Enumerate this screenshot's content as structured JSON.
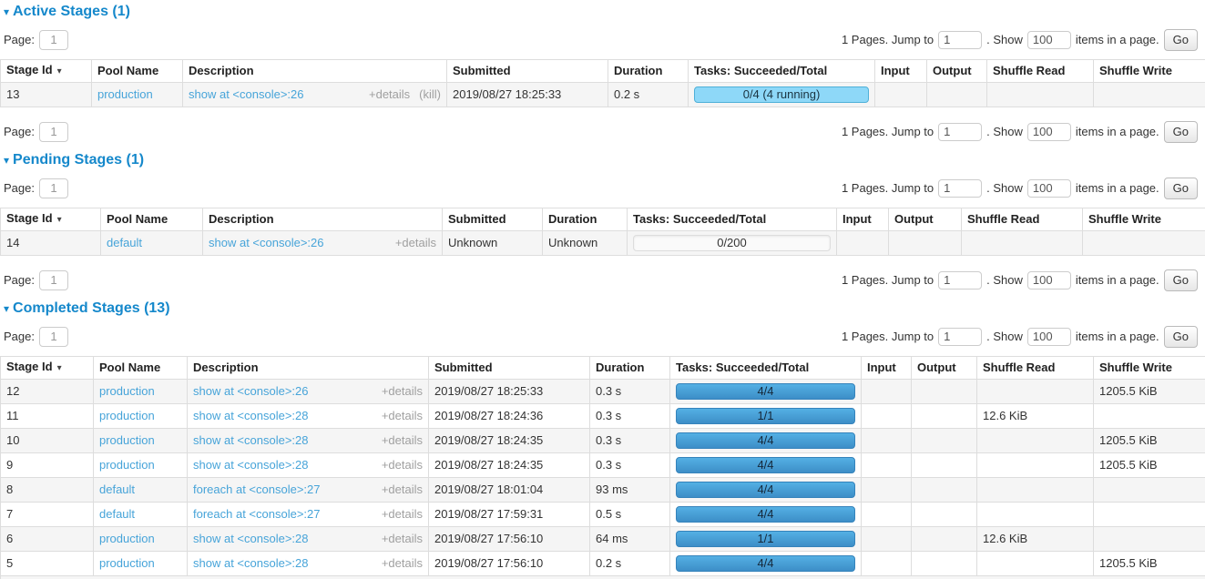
{
  "icons": {
    "collapse": "▾",
    "sort_desc": "▾"
  },
  "colors": {
    "heading_blue": "#1588cb",
    "link_blue": "#47a4d9",
    "bar_completed_top": "#54b0e4",
    "bar_completed_bottom": "#3d8ec7",
    "bar_running": "#8ed8f8",
    "row_stripe": "#f5f5f5",
    "table_border": "#dddddd"
  },
  "pagination": {
    "page_label": "Page:",
    "page_value": "1",
    "pages_text": "1 Pages. Jump to",
    "show_sep": ". Show",
    "jump_value": "1",
    "show_value": "100",
    "items_text": "items in a page.",
    "go_label": "Go"
  },
  "columns": [
    "Stage Id",
    "Pool Name",
    "Description",
    "Submitted",
    "Duration",
    "Tasks: Succeeded/Total",
    "Input",
    "Output",
    "Shuffle Read",
    "Shuffle Write"
  ],
  "sections": {
    "active": {
      "title": "Active Stages (1)",
      "rows": [
        {
          "stage_id": "13",
          "pool": "production",
          "description": "show at <console>:26",
          "details": "+details",
          "kill": "(kill)",
          "submitted": "2019/08/27 18:25:33",
          "duration": "0.2 s",
          "tasks": {
            "label": "0/4 (4 running)",
            "type": "running"
          },
          "input": "",
          "output": "",
          "shuffle_read": "",
          "shuffle_write": ""
        }
      ]
    },
    "pending": {
      "title": "Pending Stages (1)",
      "rows": [
        {
          "stage_id": "14",
          "pool": "default",
          "description": "show at <console>:26",
          "details": "+details",
          "submitted": "Unknown",
          "duration": "Unknown",
          "tasks": {
            "label": "0/200",
            "type": "empty"
          },
          "input": "",
          "output": "",
          "shuffle_read": "",
          "shuffle_write": ""
        }
      ]
    },
    "completed": {
      "title": "Completed Stages (13)",
      "rows": [
        {
          "stage_id": "12",
          "pool": "production",
          "description": "show at <console>:26",
          "details": "+details",
          "submitted": "2019/08/27 18:25:33",
          "duration": "0.3 s",
          "tasks": {
            "label": "4/4",
            "type": "completed"
          },
          "input": "",
          "output": "",
          "shuffle_read": "",
          "shuffle_write": "1205.5 KiB"
        },
        {
          "stage_id": "11",
          "pool": "production",
          "description": "show at <console>:28",
          "details": "+details",
          "submitted": "2019/08/27 18:24:36",
          "duration": "0.3 s",
          "tasks": {
            "label": "1/1",
            "type": "completed"
          },
          "input": "",
          "output": "",
          "shuffle_read": "12.6 KiB",
          "shuffle_write": ""
        },
        {
          "stage_id": "10",
          "pool": "production",
          "description": "show at <console>:28",
          "details": "+details",
          "submitted": "2019/08/27 18:24:35",
          "duration": "0.3 s",
          "tasks": {
            "label": "4/4",
            "type": "completed"
          },
          "input": "",
          "output": "",
          "shuffle_read": "",
          "shuffle_write": "1205.5 KiB"
        },
        {
          "stage_id": "9",
          "pool": "production",
          "description": "show at <console>:28",
          "details": "+details",
          "submitted": "2019/08/27 18:24:35",
          "duration": "0.3 s",
          "tasks": {
            "label": "4/4",
            "type": "completed"
          },
          "input": "",
          "output": "",
          "shuffle_read": "",
          "shuffle_write": "1205.5 KiB"
        },
        {
          "stage_id": "8",
          "pool": "default",
          "description": "foreach at <console>:27",
          "details": "+details",
          "submitted": "2019/08/27 18:01:04",
          "duration": "93 ms",
          "tasks": {
            "label": "4/4",
            "type": "completed"
          },
          "input": "",
          "output": "",
          "shuffle_read": "",
          "shuffle_write": ""
        },
        {
          "stage_id": "7",
          "pool": "default",
          "description": "foreach at <console>:27",
          "details": "+details",
          "submitted": "2019/08/27 17:59:31",
          "duration": "0.5 s",
          "tasks": {
            "label": "4/4",
            "type": "completed"
          },
          "input": "",
          "output": "",
          "shuffle_read": "",
          "shuffle_write": ""
        },
        {
          "stage_id": "6",
          "pool": "production",
          "description": "show at <console>:28",
          "details": "+details",
          "submitted": "2019/08/27 17:56:10",
          "duration": "64 ms",
          "tasks": {
            "label": "1/1",
            "type": "completed"
          },
          "input": "",
          "output": "",
          "shuffle_read": "12.6 KiB",
          "shuffle_write": ""
        },
        {
          "stage_id": "5",
          "pool": "production",
          "description": "show at <console>:28",
          "details": "+details",
          "submitted": "2019/08/27 17:56:10",
          "duration": "0.2 s",
          "tasks": {
            "label": "4/4",
            "type": "completed"
          },
          "input": "",
          "output": "",
          "shuffle_read": "",
          "shuffle_write": "1205.5 KiB"
        }
      ]
    }
  }
}
